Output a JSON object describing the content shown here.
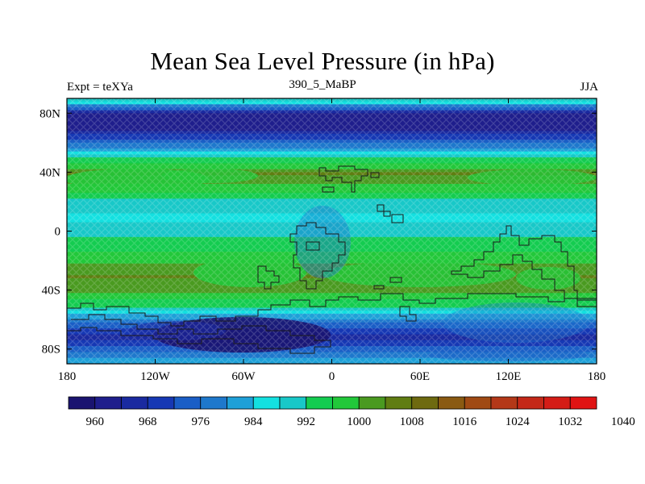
{
  "title": "Mean Sea Level Pressure (in hPa)",
  "left_label": "Expt = teXYa",
  "center_label": "390_5_MaBP",
  "right_label": "JJA",
  "map": {
    "projection": "cylindrical equidistant",
    "lon_range": [
      -180,
      180
    ],
    "lat_range": [
      -90,
      90
    ],
    "lon_ticks": [
      {
        "value": -180,
        "label": "180"
      },
      {
        "value": -120,
        "label": "120W"
      },
      {
        "value": -60,
        "label": "60W"
      },
      {
        "value": 0,
        "label": "0"
      },
      {
        "value": 60,
        "label": "60E"
      },
      {
        "value": 120,
        "label": "120E"
      },
      {
        "value": 180,
        "label": "180"
      }
    ],
    "lat_ticks": [
      {
        "value": 80,
        "label": "80N"
      },
      {
        "value": 40,
        "label": "40N"
      },
      {
        "value": 0,
        "label": "0"
      },
      {
        "value": -40,
        "label": "40S"
      },
      {
        "value": -80,
        "label": "80S"
      }
    ]
  },
  "colorbar": {
    "colors": [
      "#1a1470",
      "#1f1e8c",
      "#1a2aa0",
      "#1638b4",
      "#1a5ec6",
      "#1e78cc",
      "#1ea0d8",
      "#14e0e0",
      "#18c8c8",
      "#14cc50",
      "#22c83a",
      "#4a9a20",
      "#607d12",
      "#6e6a10",
      "#8a5a12",
      "#a04a14",
      "#b43818",
      "#c42818",
      "#d41c16",
      "#e01414"
    ],
    "labels": [
      "960",
      "968",
      "976",
      "984",
      "992",
      "1000",
      "1008",
      "1016",
      "1024",
      "1032",
      "1040"
    ]
  },
  "chart_data": {
    "type": "heatmap",
    "title": "Mean Sea Level Pressure (in hPa)",
    "units": "hPa",
    "x": "longitude",
    "y": "latitude",
    "zonal_profile": [
      {
        "lat": 90,
        "value": 990
      },
      {
        "lat": 80,
        "value": 962
      },
      {
        "lat": 70,
        "value": 963
      },
      {
        "lat": 60,
        "value": 976
      },
      {
        "lat": 50,
        "value": 992
      },
      {
        "lat": 40,
        "value": 1004
      },
      {
        "lat": 30,
        "value": 998
      },
      {
        "lat": 20,
        "value": 990
      },
      {
        "lat": 10,
        "value": 987
      },
      {
        "lat": 0,
        "value": 990
      },
      {
        "lat": -10,
        "value": 995
      },
      {
        "lat": -20,
        "value": 999
      },
      {
        "lat": -30,
        "value": 1004
      },
      {
        "lat": -40,
        "value": 1000
      },
      {
        "lat": -50,
        "value": 992
      },
      {
        "lat": -60,
        "value": 978
      },
      {
        "lat": -70,
        "value": 966
      },
      {
        "lat": -80,
        "value": 975
      },
      {
        "lat": -90,
        "value": 985
      }
    ],
    "levels": [
      960,
      968,
      976,
      984,
      992,
      1000,
      1008,
      1016,
      1024,
      1032,
      1040
    ]
  }
}
